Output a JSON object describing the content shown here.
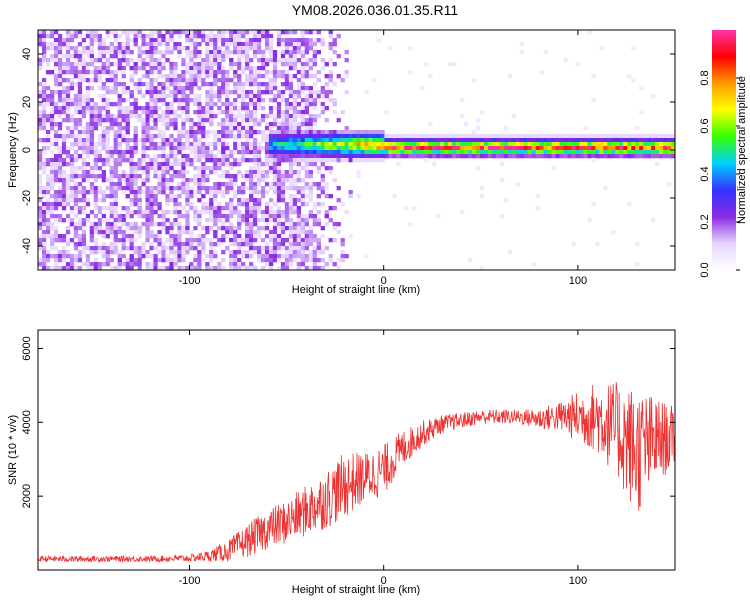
{
  "title": "YM08.2026.036.01.35.R11",
  "colors": {
    "snr_line": "#ee3333",
    "colormap": [
      "#ffffff",
      "#e6d5ff",
      "#8a2be2",
      "#3333ff",
      "#00d0ff",
      "#33ff00",
      "#ffff00",
      "#ff9900",
      "#ff0000",
      "#ff33aa"
    ]
  },
  "chart_data": [
    {
      "type": "heatmap",
      "xlabel": "Height of straight line (km)",
      "ylabel": "Frequency (Hz)",
      "xlim": [
        -178,
        150
      ],
      "ylim": [
        -50,
        50
      ],
      "xticks": [
        -100,
        0,
        100
      ],
      "yticks": [
        -40,
        -20,
        0,
        20,
        40
      ],
      "colorbar": {
        "label": "Normalized spectral amplitude",
        "range": [
          0.0,
          1.0
        ],
        "ticks": [
          0.0,
          0.2,
          0.4,
          0.6,
          0.8
        ]
      },
      "features": [
        {
          "x_range": [
            -178,
            -30
          ],
          "freq_range": [
            -50,
            50
          ],
          "amplitude": 0.15
        },
        {
          "x_range": [
            -60,
            0
          ],
          "center_freq": 2,
          "half_width_hz": 5,
          "amplitude": 0.5
        },
        {
          "x_range": [
            0,
            150
          ],
          "center_freq": 1,
          "half_width_hz": 3,
          "amplitude": 0.85
        }
      ]
    },
    {
      "type": "line",
      "xlabel": "Height of straight line (km)",
      "ylabel": "SNR (10 * v/v)",
      "xlim": [
        -178,
        150
      ],
      "ylim": [
        0,
        6500
      ],
      "xticks": [
        -100,
        0,
        100
      ],
      "yticks": [
        2000,
        4000,
        6000
      ],
      "series": [
        {
          "x": [
            -178,
            -150,
            -120,
            -100,
            -90,
            -80,
            -70,
            -60,
            -50,
            -40,
            -30,
            -20,
            -10,
            0,
            10,
            20,
            30,
            40,
            50,
            60,
            70,
            80,
            90,
            100,
            110,
            120,
            130,
            140,
            150
          ],
          "y": [
            300,
            300,
            300,
            320,
            380,
            520,
            800,
            1100,
            1300,
            1600,
            1900,
            2300,
            2500,
            2700,
            3300,
            3700,
            3950,
            4050,
            4150,
            4150,
            4150,
            4100,
            4150,
            4150,
            4150,
            3800,
            3200,
            3500,
            3600
          ],
          "spread": [
            80,
            80,
            80,
            100,
            150,
            300,
            450,
            550,
            600,
            700,
            800,
            900,
            700,
            700,
            500,
            350,
            250,
            220,
            200,
            200,
            200,
            300,
            400,
            700,
            1000,
            1300,
            1800,
            1200,
            800
          ]
        }
      ]
    }
  ]
}
